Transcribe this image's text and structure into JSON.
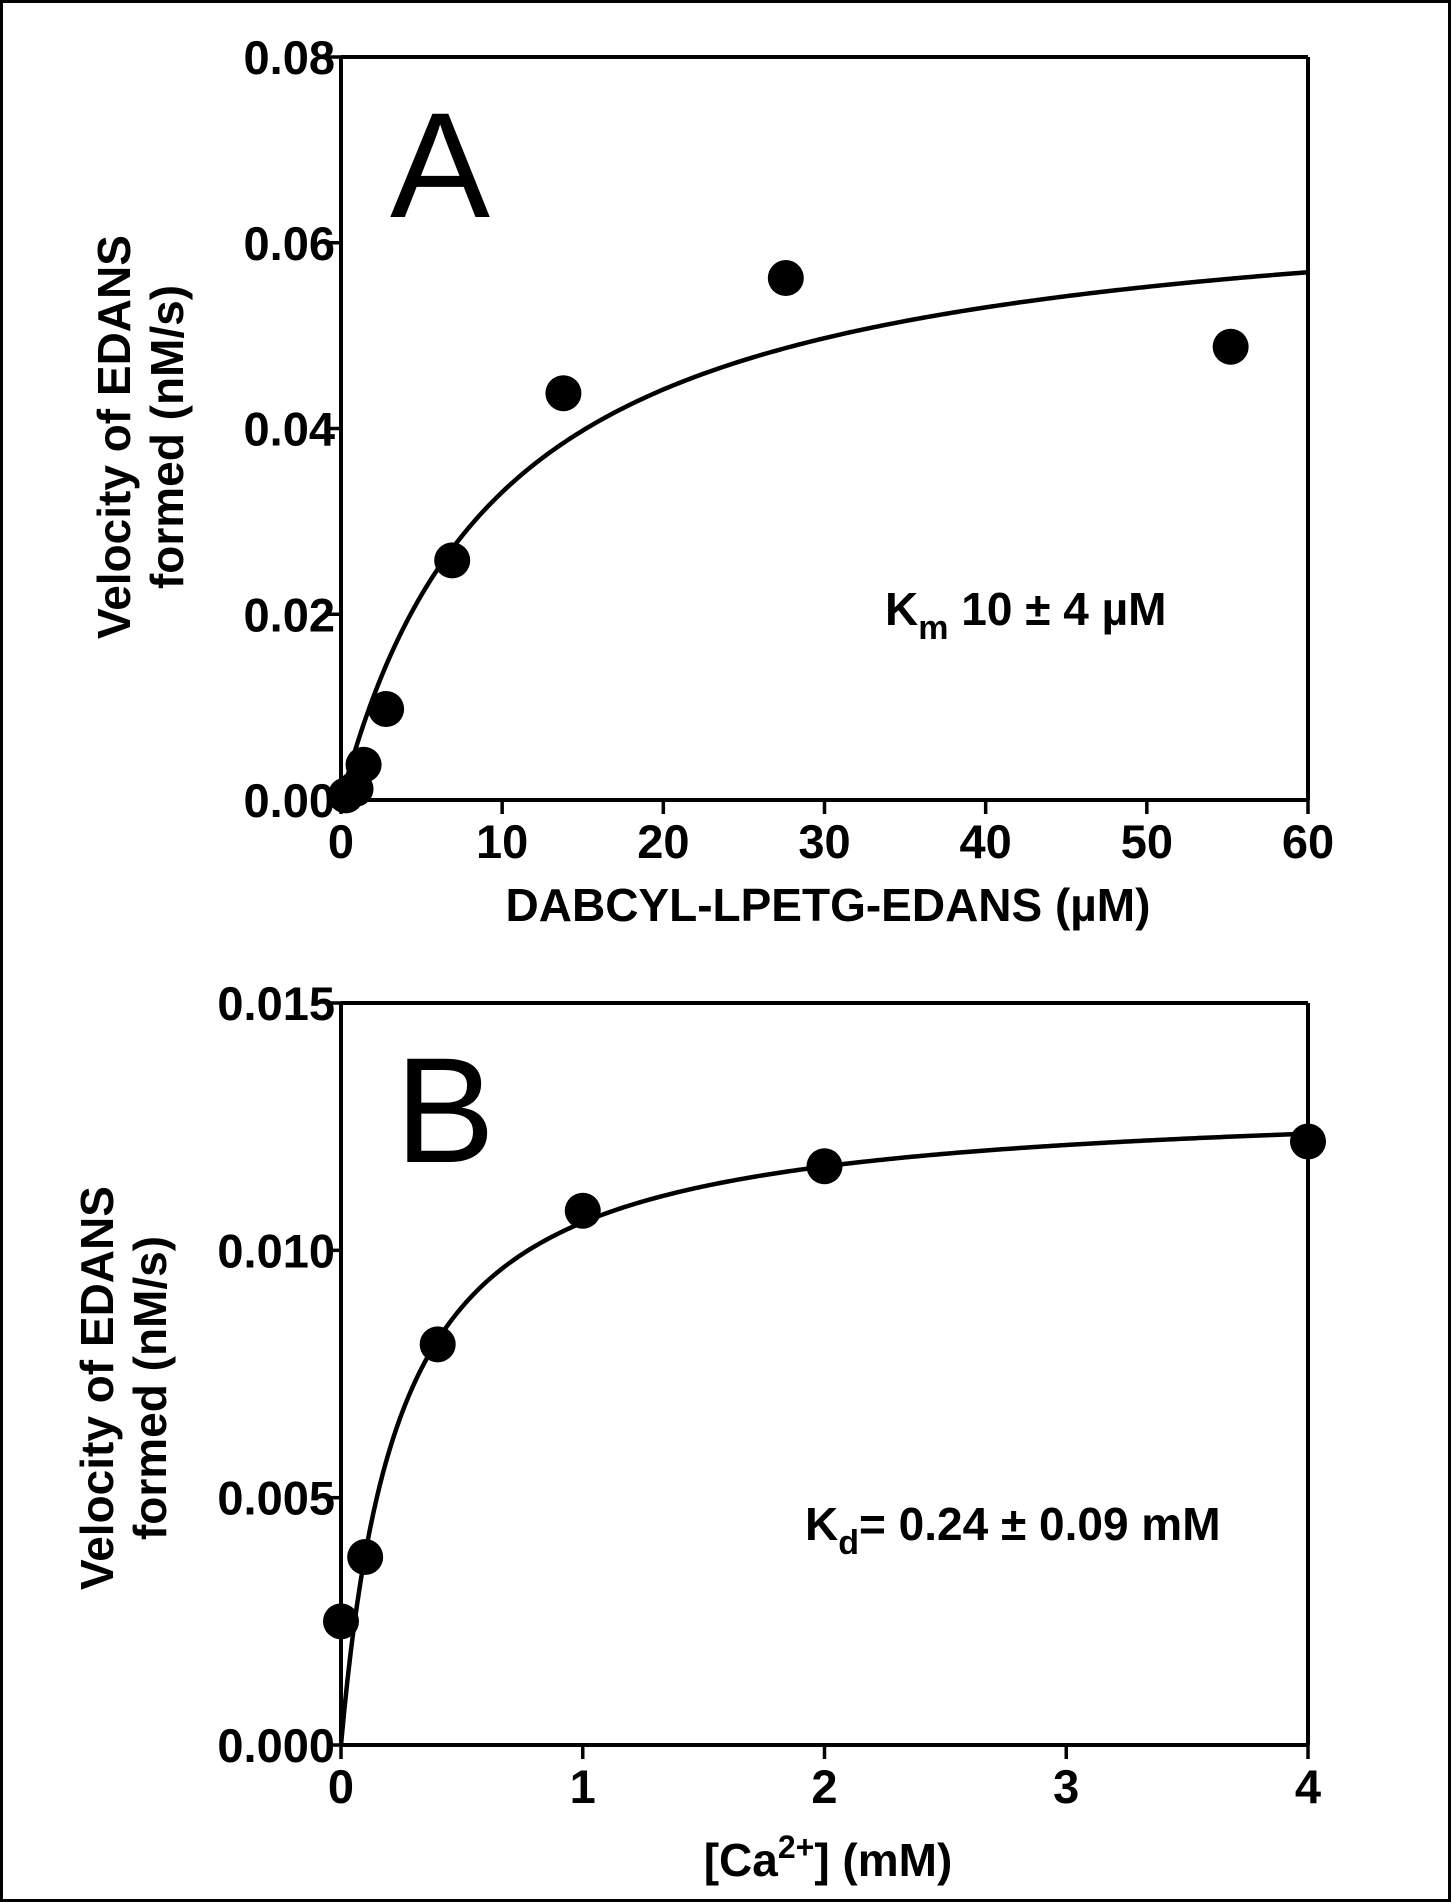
{
  "chart_data": [
    {
      "type": "scatter",
      "panel_label": "A",
      "xlabel": "DABCYL-LPETG-EDANS (µM)",
      "ylabel_lines": [
        "Velocity of EDANS",
        "formed  (nM/s)"
      ],
      "annotation": {
        "main": "K",
        "sub": "m",
        "rest": " 10 ± 4 µM"
      },
      "xlim": [
        0,
        60
      ],
      "ylim": [
        0,
        0.08
      ],
      "x_ticks": [
        "0",
        "10",
        "20",
        "30",
        "40",
        "50",
        "60"
      ],
      "y_ticks": [
        "0.00",
        "0.02",
        "0.04",
        "0.06",
        "0.08"
      ],
      "series": [
        {
          "x": [
            0.3,
            0.9,
            1.4,
            2.8,
            6.9,
            13.8,
            27.6,
            55.2
          ],
          "y": [
            0.0005,
            0.0012,
            0.0038,
            0.0098,
            0.0258,
            0.0438,
            0.0562,
            0.0488
          ]
        }
      ],
      "fit": {
        "model": "michaelis-menten",
        "vmax": 0.0663,
        "k": 10.0
      }
    },
    {
      "type": "scatter",
      "panel_label": "B",
      "xlabel_parts": [
        "[Ca",
        "2+",
        "] (mM)"
      ],
      "ylabel_lines": [
        "Velocity of EDANS",
        "formed  (nM/s)"
      ],
      "annotation": {
        "main": "K",
        "sub": "d",
        "rest": "= 0.24 ± 0.09 mM"
      },
      "xlim": [
        0,
        4
      ],
      "ylim": [
        0,
        0.015
      ],
      "x_ticks": [
        "0",
        "1",
        "2",
        "3",
        "4"
      ],
      "y_ticks": [
        "0.000",
        "0.005",
        "0.010",
        "0.015"
      ],
      "series": [
        {
          "x": [
            0.0,
            0.1,
            0.4,
            1.0,
            2.0,
            4.0
          ],
          "y": [
            0.0025,
            0.0038,
            0.0081,
            0.0108,
            0.0117,
            0.0122
          ]
        }
      ],
      "fit": {
        "model": "michaelis-menten",
        "vmax": 0.0131,
        "k": 0.24
      }
    }
  ]
}
